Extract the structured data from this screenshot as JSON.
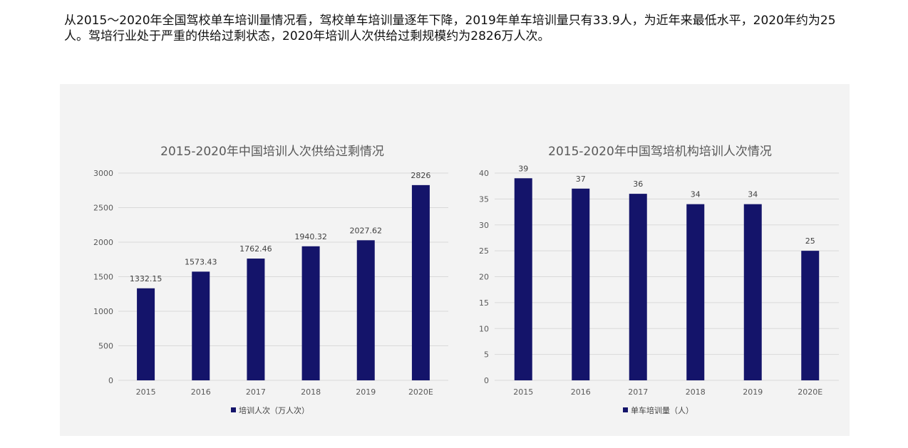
{
  "intro_text": "从2015～2020年全国驾校单车培训量情况看，驾校单车培训量逐年下降，2019年单车培训量只有33.9人，为近年来最低水平，2020年约为25人。驾培行业处于严重的供给过剩状态，2020年培训人次供给过剩规模约为2826万人次。",
  "colors": {
    "bar": "#14146a",
    "panel": "#f3f3f3",
    "grid": "#d9d9d9"
  },
  "chart_data": [
    {
      "type": "bar",
      "title": "2015-2020年中国培训人次供给过剩情况",
      "categories": [
        "2015",
        "2016",
        "2017",
        "2018",
        "2019",
        "2020E"
      ],
      "series": [
        {
          "name": "培训人次（万人次）",
          "values": [
            1332.15,
            1573.43,
            1762.46,
            1940.32,
            2027.62,
            2826
          ],
          "labels": [
            "1332.15",
            "1573.43",
            "1762.46",
            "1940.32",
            "2027.62",
            "2826"
          ]
        }
      ],
      "ylim": [
        0,
        3000
      ],
      "yticks": [
        0,
        500,
        1000,
        1500,
        2000,
        2500,
        3000
      ],
      "grid": true,
      "legend": "bottom"
    },
    {
      "type": "bar",
      "title": "2015-2020年中国驾培机构培训人次情况",
      "categories": [
        "2015",
        "2016",
        "2017",
        "2018",
        "2019",
        "2020E"
      ],
      "series": [
        {
          "name": "单车培训量（人）",
          "values": [
            39,
            37,
            36,
            34,
            34,
            25
          ],
          "labels": [
            "39",
            "37",
            "36",
            "34",
            "34",
            "25"
          ]
        }
      ],
      "ylim": [
        0,
        40
      ],
      "yticks": [
        0,
        5,
        10,
        15,
        20,
        25,
        30,
        35,
        40
      ],
      "grid": true,
      "legend": "bottom"
    }
  ]
}
